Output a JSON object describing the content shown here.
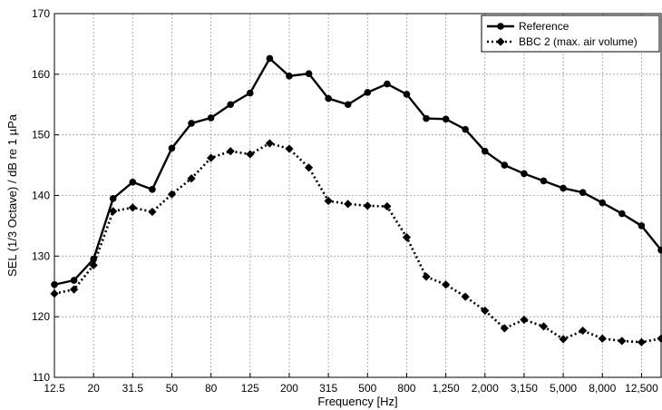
{
  "chart_data": {
    "type": "line",
    "xlabel": "Frequency [Hz]",
    "ylabel": "SEL (1/3 Octave) / dB re 1 µPa",
    "ylim": [
      110,
      170
    ],
    "yticks": [
      110,
      120,
      130,
      140,
      150,
      160,
      170
    ],
    "x": [
      "12.5",
      "16",
      "20",
      "25",
      "31.5",
      "40",
      "50",
      "63",
      "80",
      "100",
      "125",
      "160",
      "200",
      "250",
      "315",
      "400",
      "500",
      "630",
      "800",
      "1,000",
      "1,250",
      "1,600",
      "2,000",
      "2,500",
      "3,150",
      "4,000",
      "5,000",
      "6,300",
      "8,000",
      "10,000",
      "12,500",
      "16,000"
    ],
    "x_tick_labels": [
      "12.5",
      "20",
      "31.5",
      "50",
      "80",
      "125",
      "200",
      "315",
      "500",
      "800",
      "1,250",
      "2,000",
      "3,150",
      "5,000",
      "8,000",
      "12,500"
    ],
    "grid": true,
    "legend_position": "top-right",
    "series": [
      {
        "name": "Reference",
        "style": "solid",
        "marker": "circle",
        "color": "#000000",
        "values": [
          125.3,
          126.0,
          129.5,
          139.5,
          142.2,
          141.0,
          147.8,
          151.9,
          152.8,
          155.0,
          156.9,
          162.6,
          159.7,
          160.1,
          156.0,
          155.0,
          157.0,
          158.4,
          156.7,
          152.7,
          152.6,
          150.9,
          147.3,
          145.0,
          143.6,
          142.4,
          141.2,
          140.5,
          138.8,
          137.0,
          135.0,
          131.0
        ]
      },
      {
        "name": "BBC 2 (max. air volume)",
        "style": "dotted",
        "marker": "diamond",
        "color": "#000000",
        "values": [
          123.8,
          124.5,
          128.5,
          137.4,
          138.0,
          137.3,
          140.2,
          142.8,
          146.2,
          147.3,
          146.8,
          148.6,
          147.7,
          144.6,
          139.1,
          138.6,
          138.3,
          138.2,
          133.1,
          126.6,
          125.3,
          123.3,
          121.0,
          118.1,
          119.5,
          118.4,
          116.3,
          117.7,
          116.4,
          116.0,
          115.8,
          116.4
        ]
      }
    ]
  }
}
